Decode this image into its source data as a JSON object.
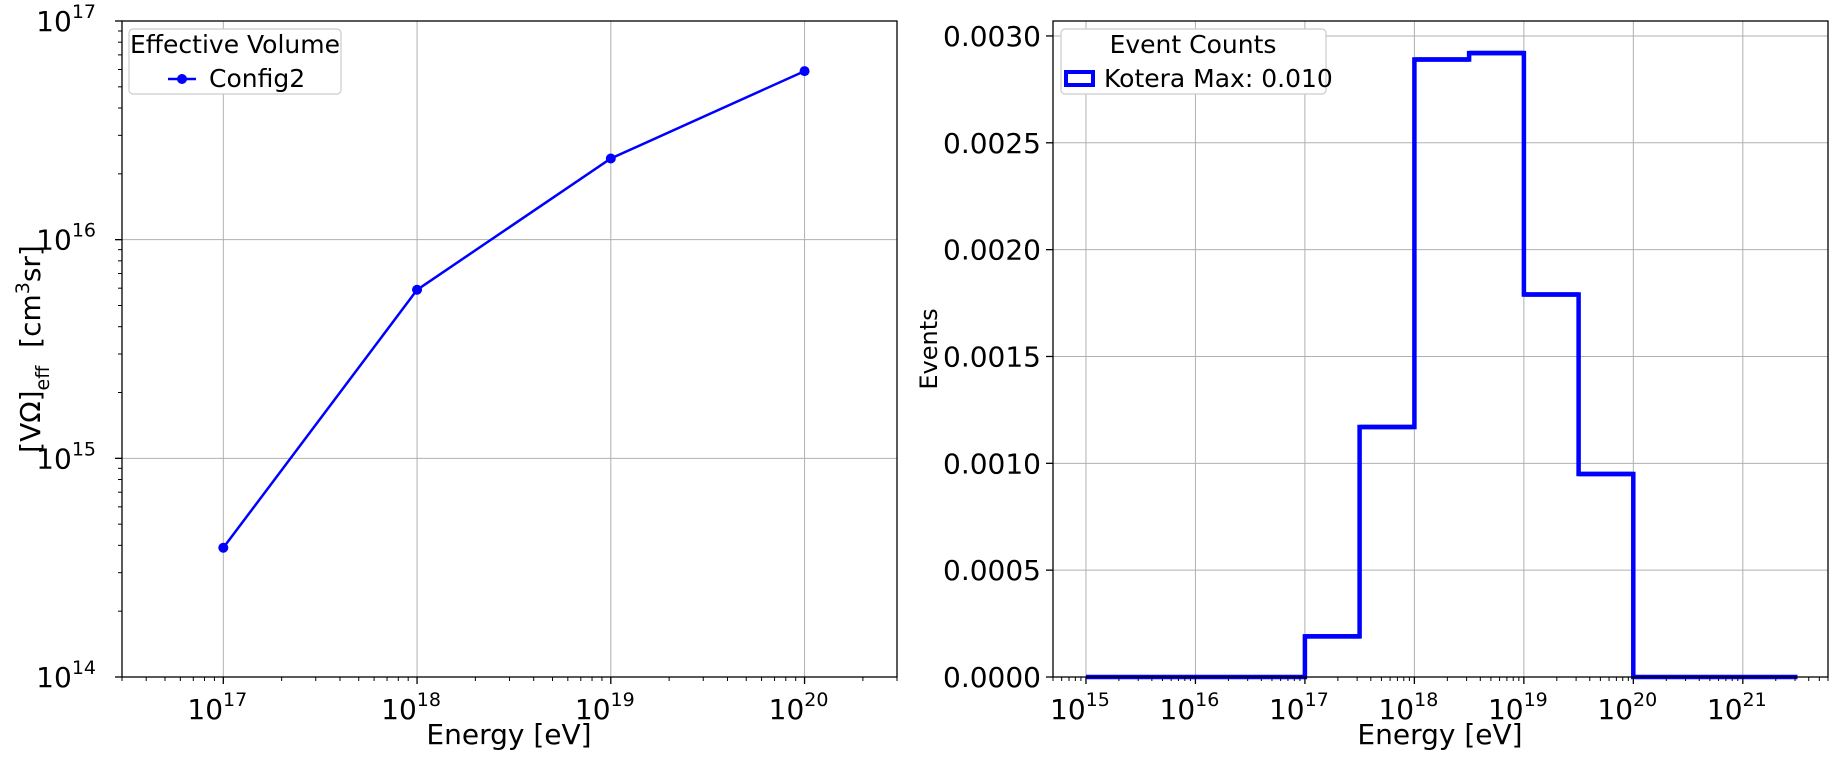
{
  "chart_data": [
    {
      "type": "line",
      "xscale": "log",
      "yscale": "log",
      "xlim": [
        3e+16,
        3e+20
      ],
      "ylim": [
        100000000000000.0,
        1e+17
      ],
      "xlabel": "Energy  [eV]",
      "ylabel": {
        "main": "[VΩ]",
        "sub": "eff",
        "unit_pre": "[cm",
        "unit_sup": "3",
        "unit_post": "sr]"
      },
      "xticks": [
        {
          "base": "10",
          "exp": "17",
          "value": 1e+17
        },
        {
          "base": "10",
          "exp": "18",
          "value": 1e+18
        },
        {
          "base": "10",
          "exp": "19",
          "value": 1e+19
        },
        {
          "base": "10",
          "exp": "20",
          "value": 1e+20
        }
      ],
      "yticks": [
        {
          "base": "10",
          "exp": "14",
          "value": 100000000000000.0
        },
        {
          "base": "10",
          "exp": "15",
          "value": 1000000000000000.0
        },
        {
          "base": "10",
          "exp": "16",
          "value": 1e+16
        },
        {
          "base": "10",
          "exp": "17",
          "value": 1e+17
        }
      ],
      "grid": true,
      "legend_title": "Effective Volume",
      "legend_position": "upper-left",
      "series": [
        {
          "name": "Config2",
          "color": "#0000ff",
          "marker": "circle",
          "x": [
            1e+17,
            1e+18,
            1e+19,
            1e+20
          ],
          "y": [
            390000000000000.0,
            5900000000000000.0,
            2.35e+16,
            5.9e+16
          ]
        }
      ]
    },
    {
      "type": "histogram",
      "xscale": "log",
      "yscale": "linear",
      "xlim": [
        500000000000000.0,
        6e+21
      ],
      "ylim": [
        0,
        0.00307
      ],
      "xlabel": "Energy [eV]",
      "ylabel": "Events",
      "xticks": [
        {
          "base": "10",
          "exp": "15",
          "value": 1000000000000000.0
        },
        {
          "base": "10",
          "exp": "16",
          "value": 1e+16
        },
        {
          "base": "10",
          "exp": "17",
          "value": 1e+17
        },
        {
          "base": "10",
          "exp": "18",
          "value": 1e+18
        },
        {
          "base": "10",
          "exp": "19",
          "value": 1e+19
        },
        {
          "base": "10",
          "exp": "20",
          "value": 1e+20
        },
        {
          "base": "10",
          "exp": "21",
          "value": 1e+21
        }
      ],
      "yticks": [
        "0.0000",
        "0.0005",
        "0.0010",
        "0.0015",
        "0.0020",
        "0.0025",
        "0.0030"
      ],
      "grid": true,
      "legend_title": "Event Counts",
      "legend_position": "upper-left",
      "series": [
        {
          "name": "Kotera Max: 0.010",
          "color": "#0000ff",
          "bin_edges": [
            1000000000000000.0,
            3162000000000000.0,
            1e+16,
            3.162e+16,
            1e+17,
            3.162e+17,
            1e+18,
            3.162e+18,
            1e+19,
            3.162e+19,
            1e+20,
            3.162e+20,
            1e+21,
            3.162e+21
          ],
          "values": [
            0,
            0,
            0,
            0,
            0.00019,
            0.00117,
            0.00289,
            0.00292,
            0.00179,
            0.00095,
            0,
            0,
            0
          ]
        }
      ]
    }
  ]
}
